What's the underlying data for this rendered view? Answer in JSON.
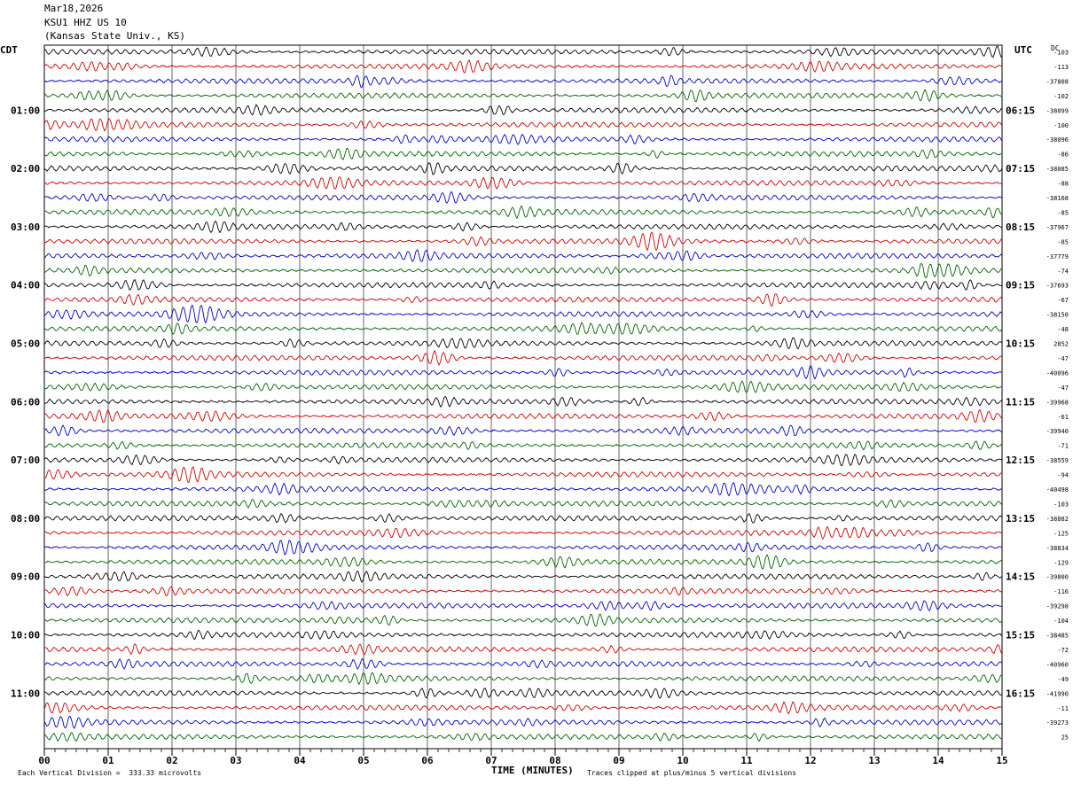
{
  "header": {
    "date": "Mar18,2026",
    "station": "KSU1 HHZ US 10",
    "location": "(Kansas State Univ., KS)"
  },
  "left_tz": "CDT",
  "right_tz": "UTC",
  "dc_label": "DC",
  "x_axis": {
    "title": "TIME (MINUTES)",
    "ticks": [
      "00",
      "01",
      "02",
      "03",
      "04",
      "05",
      "06",
      "07",
      "08",
      "09",
      "10",
      "11",
      "12",
      "13",
      "14",
      "15"
    ]
  },
  "footer": {
    "scale_note": "Each Vertical Division =  333.33 microvolts",
    "clip_note": "Traces clipped at plus/minus 5 vertical divisions"
  },
  "colors": {
    "trace_cycle": [
      "#000000",
      "#d00000",
      "#0000c8",
      "#006400"
    ],
    "grid": "#000000"
  },
  "chart_data": {
    "type": "line",
    "title": "Mar18,2026 KSU1 HHZ US 10 (Kansas State Univ., KS)",
    "xlabel": "TIME (MINUTES)",
    "xlim": [
      0,
      15
    ],
    "minutes_per_line": 15,
    "line_count": 48,
    "left_hour_labels": [
      "01:00",
      "02:00",
      "03:00",
      "04:00",
      "05:00",
      "06:00",
      "07:00",
      "08:00",
      "09:00",
      "10:00",
      "11:00"
    ],
    "right_hour_labels": [
      "06:15",
      "07:15",
      "08:15",
      "09:15",
      "10:15",
      "11:15",
      "12:15",
      "13:15",
      "14:15",
      "15:15",
      "16:15"
    ],
    "dc_offsets": [
      "-103",
      "-113",
      "-37808",
      "-102",
      "-38099",
      "-100",
      "-38096",
      "-86",
      "-38085",
      "-88",
      "-38168",
      "-85",
      "-37967",
      "-85",
      "-37779",
      "-74",
      "-37693",
      "-67",
      "-38150",
      "-48",
      "2852",
      "-47",
      "-40096",
      "-47",
      "-39968",
      "-61",
      "-39940",
      "-71",
      "-38559",
      "-94",
      "-40498",
      "-103",
      "-38882",
      "-125",
      "-38834",
      "-129",
      "-39800",
      "-116",
      "-39298",
      "-104",
      "-38485",
      "-72",
      "-40960",
      "-49",
      "-41990",
      "-11",
      "-39273",
      "25"
    ]
  }
}
